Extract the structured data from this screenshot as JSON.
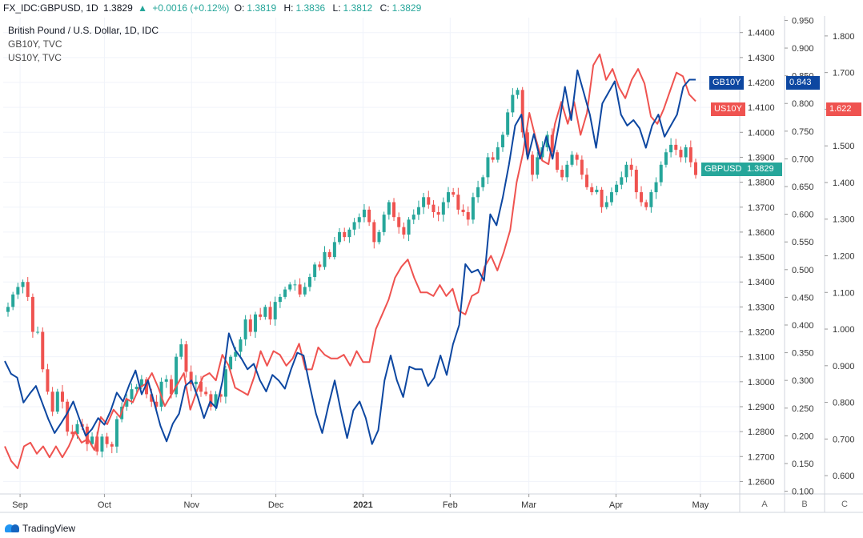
{
  "header": {
    "symbol": "FX_IDC:GBPUSD, 1D",
    "last": "1.3829",
    "change": "+0.0016 (+0.12%)",
    "open_label": "O:",
    "open": "1.3819",
    "high_label": "H:",
    "high": "1.3836",
    "low_label": "L:",
    "low": "1.3812",
    "close_label": "C:",
    "close": "1.3829"
  },
  "legend": {
    "main": "British Pound / U.S. Dollar, 1D, IDC",
    "second": "GB10Y, TVC",
    "third": "US10Y, TVC"
  },
  "tags": {
    "gb10y_name": "GB10Y",
    "gb10y_value": "0.843",
    "us10y_name": "US10Y",
    "us10y_value": "1.622",
    "gbpusd_name": "GBPUSD",
    "gbpusd_value": "1.3829"
  },
  "scale_buttons": [
    "A",
    "B",
    "C"
  ],
  "branding": "TradingView",
  "colors": {
    "up": "#26a69a",
    "down": "#ef5350",
    "gb10y": "#0d47a1",
    "us10y": "#ef5350",
    "grid": "#f0f3fa"
  },
  "chart_data": {
    "type": "line",
    "x_tick_labels": [
      "Sep",
      "Oct",
      "Nov",
      "Dec",
      "2021",
      "Feb",
      "Mar",
      "Apr",
      "May"
    ],
    "x_tick_dates": [
      "2020-09-01",
      "2020-10-01",
      "2020-11-01",
      "2020-12-01",
      "2021-01-01",
      "2021-02-01",
      "2021-03-01",
      "2021-04-01",
      "2021-05-01"
    ],
    "axes": {
      "gbpusd": {
        "ticks": [
          "1.4400",
          "1.4300",
          "1.4200",
          "1.4100",
          "1.4000",
          "1.3900",
          "1.3800",
          "1.3700",
          "1.3600",
          "1.3500",
          "1.3400",
          "1.3300",
          "1.3200",
          "1.3100",
          "1.3000",
          "1.2900",
          "1.2800",
          "1.2700",
          "1.2600"
        ],
        "range": [
          1.255,
          1.446
        ]
      },
      "gb10y": {
        "ticks": [
          "0.950",
          "0.900",
          "0.850",
          "0.800",
          "0.750",
          "0.700",
          "0.650",
          "0.600",
          "0.550",
          "0.500",
          "0.450",
          "0.400",
          "0.350",
          "0.300",
          "0.250",
          "0.200",
          "0.150",
          "0.100"
        ],
        "range": [
          0.095,
          0.955
        ]
      },
      "us10y": {
        "ticks": [
          "1.800",
          "1.700",
          "1.600",
          "1.500",
          "1.400",
          "1.300",
          "1.200",
          "1.100",
          "1.000",
          "0.900",
          "0.800",
          "0.700",
          "0.600"
        ],
        "range": [
          0.55,
          1.85
        ]
      }
    },
    "series": [
      {
        "name": "GBPUSD",
        "kind": "candlestick",
        "close": [
          1.33,
          1.335,
          1.338,
          1.34,
          1.334,
          1.32,
          1.32,
          1.305,
          1.296,
          1.288,
          1.296,
          1.292,
          1.28,
          1.279,
          1.283,
          1.282,
          1.275,
          1.278,
          1.272,
          1.278,
          1.275,
          1.274,
          1.285,
          1.29,
          1.293,
          1.297,
          1.298,
          1.301,
          1.295,
          1.292,
          1.29,
          1.3,
          1.301,
          1.295,
          1.31,
          1.315,
          1.304,
          1.299,
          1.3,
          1.296,
          1.295,
          1.29,
          1.295,
          1.294,
          1.305,
          1.31,
          1.312,
          1.317,
          1.325,
          1.32,
          1.327,
          1.326,
          1.33,
          1.325,
          1.332,
          1.334,
          1.337,
          1.339,
          1.339,
          1.335,
          1.338,
          1.342,
          1.347,
          1.346,
          1.352,
          1.35,
          1.356,
          1.36,
          1.358,
          1.361,
          1.364,
          1.366,
          1.369,
          1.364,
          1.356,
          1.36,
          1.367,
          1.372,
          1.366,
          1.362,
          1.359,
          1.365,
          1.367,
          1.37,
          1.374,
          1.371,
          1.368,
          1.367,
          1.372,
          1.376,
          1.375,
          1.369,
          1.368,
          1.365,
          1.374,
          1.378,
          1.382,
          1.39,
          1.389,
          1.394,
          1.399,
          1.408,
          1.415,
          1.417,
          1.4,
          1.391,
          1.383,
          1.39,
          1.394,
          1.399,
          1.392,
          1.385,
          1.382,
          1.387,
          1.391,
          1.389,
          1.383,
          1.378,
          1.376,
          1.377,
          1.37,
          1.372,
          1.376,
          1.379,
          1.382,
          1.387,
          1.385,
          1.376,
          1.372,
          1.37,
          1.376,
          1.38,
          1.387,
          1.392,
          1.395,
          1.393,
          1.39,
          1.394,
          1.388,
          1.3829
        ]
      },
      {
        "name": "GB10Y",
        "kind": "line",
        "values": [
          0.335,
          0.312,
          0.305,
          0.26,
          0.276,
          0.29,
          0.26,
          0.23,
          0.205,
          0.222,
          0.24,
          0.262,
          0.23,
          0.2,
          0.212,
          0.232,
          0.22,
          0.245,
          0.278,
          0.262,
          0.292,
          0.318,
          0.275,
          0.3,
          0.26,
          0.218,
          0.19,
          0.222,
          0.24,
          0.29,
          0.3,
          0.27,
          0.232,
          0.262,
          0.25,
          0.3,
          0.385,
          0.355,
          0.34,
          0.32,
          0.33,
          0.3,
          0.28,
          0.31,
          0.3,
          0.285,
          0.32,
          0.35,
          0.345,
          0.29,
          0.24,
          0.205,
          0.255,
          0.3,
          0.245,
          0.196,
          0.246,
          0.262,
          0.232,
          0.185,
          0.21,
          0.3,
          0.345,
          0.3,
          0.27,
          0.325,
          0.32,
          0.32,
          0.29,
          0.305,
          0.345,
          0.31,
          0.365,
          0.4,
          0.51,
          0.495,
          0.5,
          0.48,
          0.6,
          0.58,
          0.63,
          0.69,
          0.76,
          0.78,
          0.7,
          0.745,
          0.7,
          0.74,
          0.7,
          0.76,
          0.83,
          0.77,
          0.86,
          0.82,
          0.78,
          0.72,
          0.8,
          0.82,
          0.84,
          0.78,
          0.76,
          0.77,
          0.755,
          0.72,
          0.76,
          0.78,
          0.74,
          0.76,
          0.78,
          0.83,
          0.843,
          0.843
        ]
      },
      {
        "name": "US10Y",
        "kind": "line",
        "values": [
          0.68,
          0.64,
          0.62,
          0.68,
          0.69,
          0.66,
          0.68,
          0.65,
          0.68,
          0.65,
          0.68,
          0.72,
          0.69,
          0.7,
          0.67,
          0.76,
          0.74,
          0.78,
          0.76,
          0.81,
          0.8,
          0.84,
          0.85,
          0.88,
          0.84,
          0.79,
          0.82,
          0.85,
          0.88,
          0.78,
          0.83,
          0.87,
          0.88,
          0.86,
          0.93,
          0.9,
          0.84,
          0.83,
          0.82,
          0.87,
          0.94,
          0.9,
          0.94,
          0.93,
          0.9,
          0.92,
          0.96,
          0.89,
          0.89,
          0.95,
          0.93,
          0.92,
          0.92,
          0.93,
          0.9,
          0.94,
          0.91,
          0.91,
          1.0,
          1.04,
          1.08,
          1.14,
          1.17,
          1.19,
          1.14,
          1.1,
          1.1,
          1.09,
          1.12,
          1.09,
          1.11,
          1.05,
          1.04,
          1.09,
          1.1,
          1.17,
          1.2,
          1.16,
          1.21,
          1.27,
          1.4,
          1.48,
          1.59,
          1.52,
          1.46,
          1.45,
          1.56,
          1.62,
          1.56,
          1.62,
          1.53,
          1.59,
          1.72,
          1.75,
          1.68,
          1.71,
          1.66,
          1.63,
          1.68,
          1.71,
          1.67,
          1.58,
          1.56,
          1.6,
          1.65,
          1.7,
          1.69,
          1.64,
          1.622
        ]
      }
    ]
  }
}
